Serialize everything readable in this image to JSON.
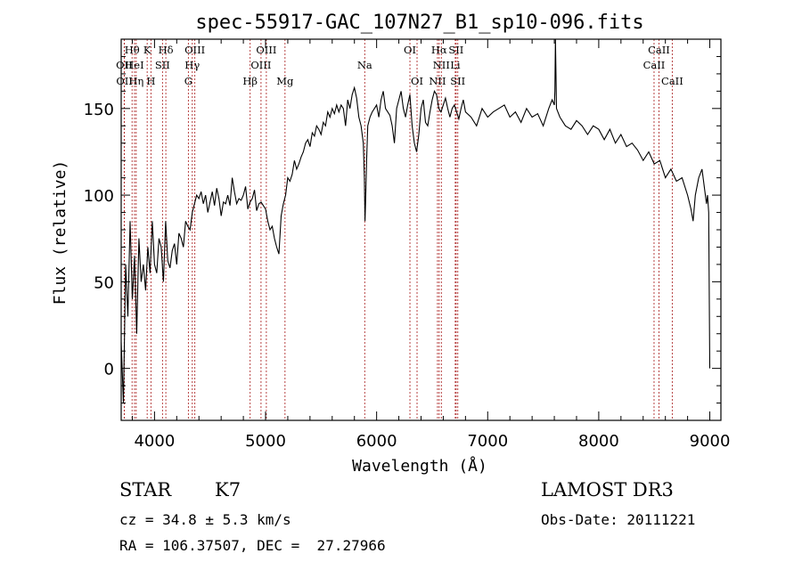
{
  "chart_data": {
    "type": "line",
    "title": "spec-55917-GAC_107N27_B1_sp10-096.fits",
    "xlabel": "Wavelength (Å)",
    "ylabel": "Flux (relative)",
    "xlim": [
      3700,
      9100
    ],
    "ylim": [
      -30,
      190
    ],
    "xticks": [
      4000,
      5000,
      6000,
      7000,
      8000,
      9000
    ],
    "yticks": [
      0,
      50,
      100,
      150
    ],
    "series": [
      {
        "name": "spectrum",
        "x": [
          3700,
          3720,
          3740,
          3760,
          3780,
          3800,
          3820,
          3840,
          3860,
          3880,
          3900,
          3920,
          3940,
          3960,
          3980,
          4000,
          4020,
          4040,
          4060,
          4080,
          4100,
          4120,
          4140,
          4160,
          4180,
          4200,
          4220,
          4240,
          4260,
          4280,
          4300,
          4320,
          4340,
          4360,
          4380,
          4400,
          4420,
          4440,
          4460,
          4480,
          4500,
          4520,
          4540,
          4560,
          4580,
          4600,
          4620,
          4640,
          4660,
          4680,
          4700,
          4720,
          4740,
          4760,
          4780,
          4800,
          4820,
          4840,
          4860,
          4880,
          4900,
          4920,
          4940,
          4960,
          4980,
          5000,
          5020,
          5040,
          5060,
          5080,
          5100,
          5120,
          5140,
          5160,
          5180,
          5200,
          5220,
          5240,
          5260,
          5280,
          5300,
          5320,
          5340,
          5360,
          5380,
          5400,
          5420,
          5440,
          5460,
          5480,
          5500,
          5520,
          5540,
          5560,
          5580,
          5600,
          5620,
          5640,
          5660,
          5680,
          5700,
          5720,
          5740,
          5760,
          5780,
          5800,
          5820,
          5840,
          5860,
          5880,
          5890,
          5895,
          5900,
          5910,
          5920,
          5940,
          5960,
          5980,
          6000,
          6020,
          6040,
          6060,
          6080,
          6100,
          6120,
          6140,
          6160,
          6180,
          6200,
          6220,
          6240,
          6260,
          6280,
          6300,
          6320,
          6340,
          6360,
          6380,
          6400,
          6420,
          6440,
          6460,
          6480,
          6500,
          6520,
          6540,
          6560,
          6580,
          6600,
          6620,
          6640,
          6660,
          6680,
          6700,
          6720,
          6740,
          6760,
          6780,
          6800,
          6850,
          6900,
          6950,
          7000,
          7050,
          7100,
          7150,
          7200,
          7250,
          7300,
          7350,
          7400,
          7450,
          7500,
          7550,
          7580,
          7600,
          7605,
          7610,
          7620,
          7650,
          7700,
          7750,
          7800,
          7850,
          7900,
          7950,
          8000,
          8050,
          8100,
          8150,
          8200,
          8250,
          8300,
          8350,
          8400,
          8450,
          8500,
          8550,
          8600,
          8650,
          8700,
          8750,
          8800,
          8830,
          8850,
          8870,
          8900,
          8930,
          8950,
          8970,
          8980,
          8990,
          9000
        ],
        "values": [
          15,
          -20,
          60,
          30,
          85,
          40,
          65,
          20,
          75,
          50,
          60,
          45,
          70,
          55,
          85,
          60,
          55,
          75,
          70,
          50,
          85,
          62,
          58,
          68,
          72,
          60,
          78,
          75,
          70,
          85,
          82,
          80,
          90,
          95,
          100,
          98,
          102,
          95,
          100,
          90,
          96,
          102,
          94,
          104,
          98,
          88,
          96,
          95,
          100,
          94,
          110,
          102,
          95,
          98,
          97,
          100,
          105,
          92,
          96,
          98,
          103,
          91,
          95,
          96,
          94,
          92,
          85,
          80,
          82,
          75,
          70,
          66,
          88,
          95,
          100,
          110,
          108,
          112,
          120,
          115,
          118,
          122,
          125,
          130,
          132,
          128,
          136,
          134,
          140,
          138,
          135,
          142,
          140,
          148,
          145,
          150,
          147,
          152,
          148,
          152,
          150,
          140,
          155,
          150,
          158,
          162,
          156,
          145,
          140,
          130,
          110,
          85,
          95,
          120,
          140,
          145,
          148,
          150,
          152,
          145,
          155,
          160,
          150,
          148,
          146,
          140,
          130,
          150,
          155,
          160,
          150,
          145,
          152,
          158,
          140,
          130,
          125,
          135,
          150,
          155,
          142,
          140,
          148,
          155,
          160,
          158,
          150,
          148,
          152,
          156,
          150,
          145,
          150,
          152,
          148,
          144,
          150,
          155,
          148,
          145,
          140,
          150,
          145,
          148,
          150,
          152,
          145,
          148,
          142,
          150,
          145,
          147,
          140,
          150,
          155,
          152,
          160,
          190,
          150,
          145,
          140,
          138,
          143,
          140,
          135,
          140,
          138,
          132,
          138,
          130,
          135,
          128,
          130,
          126,
          120,
          125,
          118,
          120,
          110,
          115,
          108,
          110,
          100,
          92,
          85,
          100,
          110,
          115,
          105,
          95,
          100,
          90,
          0
        ]
      }
    ],
    "spectral_lines": [
      {
        "label": "Hθ",
        "x": 3798,
        "row": 1
      },
      {
        "label": "OII",
        "x": 3727,
        "row": 2
      },
      {
        "label": "OII",
        "x": 3729,
        "row": 3
      },
      {
        "label": "HeI",
        "x": 3820,
        "row": 2
      },
      {
        "label": "Hη",
        "x": 3835,
        "row": 3
      },
      {
        "label": "K",
        "x": 3934,
        "row": 1
      },
      {
        "label": "H",
        "x": 3968,
        "row": 3
      },
      {
        "label": "SII",
        "x": 4072,
        "row": 2
      },
      {
        "label": "Hδ",
        "x": 4102,
        "row": 1
      },
      {
        "label": "OIII",
        "x": 4363,
        "row": 1
      },
      {
        "label": "Hγ",
        "x": 4340,
        "row": 2
      },
      {
        "label": "G",
        "x": 4305,
        "row": 3
      },
      {
        "label": "Hβ",
        "x": 4861,
        "row": 3
      },
      {
        "label": "OIII",
        "x": 5007,
        "row": 1
      },
      {
        "label": "OIII",
        "x": 4959,
        "row": 2
      },
      {
        "label": "Mg",
        "x": 5175,
        "row": 3
      },
      {
        "label": "Na",
        "x": 5893,
        "row": 2
      },
      {
        "label": "OI",
        "x": 6300,
        "row": 1
      },
      {
        "label": "OI",
        "x": 6364,
        "row": 3
      },
      {
        "label": "Hα",
        "x": 6563,
        "row": 1
      },
      {
        "label": "NII",
        "x": 6583,
        "row": 2
      },
      {
        "label": "NII",
        "x": 6548,
        "row": 3
      },
      {
        "label": "SII",
        "x": 6716,
        "row": 1
      },
      {
        "label": "Li",
        "x": 6708,
        "row": 2
      },
      {
        "label": "SII",
        "x": 6731,
        "row": 3
      },
      {
        "label": "CaII",
        "x": 8542,
        "row": 1
      },
      {
        "label": "CaII",
        "x": 8498,
        "row": 2
      },
      {
        "label": "CaII",
        "x": 8662,
        "row": 3
      }
    ]
  },
  "info": {
    "object_class": "STAR",
    "subclass": "K7",
    "survey": "LAMOST DR3",
    "redshift": "cz = 34.8 ± 5.3 km/s",
    "obs_date": "Obs-Date: 20111221",
    "coords": "RA = 106.37507, DEC =  27.27966"
  }
}
